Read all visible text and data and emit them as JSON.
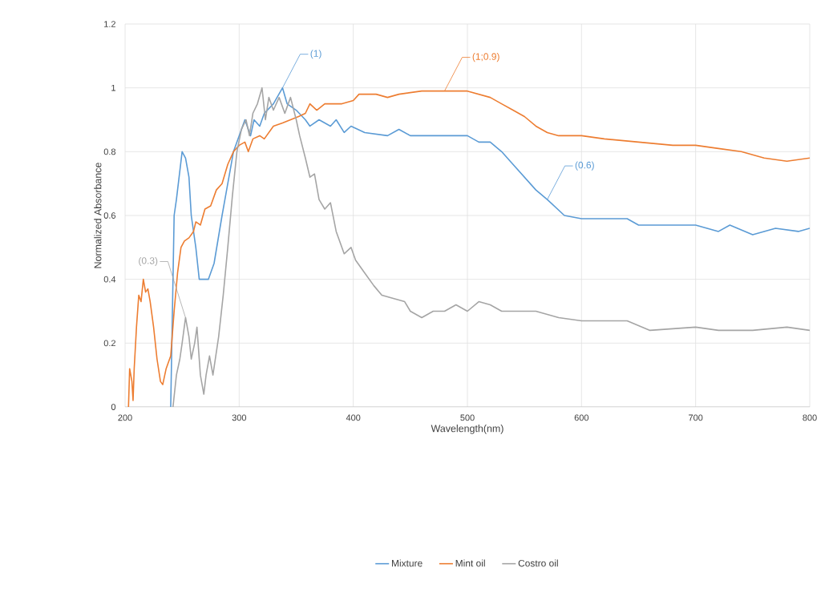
{
  "chart_data": {
    "type": "line",
    "xlabel": "Wavelength(nm)",
    "ylabel": "Normalized Absorbance",
    "xlim": [
      200,
      800
    ],
    "xticks": [
      200,
      300,
      400,
      500,
      600,
      700,
      800
    ],
    "ylim": [
      0,
      1.2
    ],
    "yticks": [
      0,
      0.2,
      0.4,
      0.6,
      0.8,
      1,
      1.2
    ],
    "grid": true,
    "legend": "bottom",
    "marker": "none",
    "line_style": "solid",
    "annotations": [
      {
        "text": "(1)",
        "x": 338,
        "y": 1.0
      },
      {
        "text": "(1;0.9)",
        "x": 480,
        "y": 0.99
      },
      {
        "text": "(0.6)",
        "x": 570,
        "y": 0.65
      },
      {
        "text": "(0.3)",
        "x": 253,
        "y": 0.28
      }
    ],
    "series": [
      {
        "name": "Mixture",
        "color": "#5b9bd5",
        "x": [
          240,
          243,
          245,
          250,
          253,
          256,
          258,
          262,
          265,
          273,
          278,
          285,
          295,
          300,
          305,
          310,
          313,
          318,
          322,
          330,
          338,
          342,
          350,
          358,
          362,
          370,
          380,
          385,
          392,
          398,
          410,
          430,
          440,
          450,
          500,
          510,
          520,
          530,
          540,
          550,
          560,
          570,
          585,
          600,
          640,
          650,
          700,
          720,
          730,
          750,
          770,
          790,
          800
        ],
        "values": [
          0,
          0.6,
          0.65,
          0.8,
          0.78,
          0.72,
          0.6,
          0.5,
          0.4,
          0.4,
          0.45,
          0.6,
          0.8,
          0.85,
          0.9,
          0.85,
          0.9,
          0.88,
          0.92,
          0.95,
          1.0,
          0.95,
          0.93,
          0.9,
          0.88,
          0.9,
          0.88,
          0.9,
          0.86,
          0.88,
          0.86,
          0.85,
          0.87,
          0.85,
          0.85,
          0.83,
          0.83,
          0.8,
          0.76,
          0.72,
          0.68,
          0.65,
          0.6,
          0.59,
          0.59,
          0.57,
          0.57,
          0.55,
          0.57,
          0.54,
          0.56,
          0.55,
          0.56
        ]
      },
      {
        "name": "Mint oil",
        "color": "#ed7d31",
        "x": [
          203,
          204,
          206,
          207,
          208,
          210,
          212,
          214,
          216,
          218,
          220,
          222,
          225,
          228,
          231,
          233,
          236,
          240,
          243,
          246,
          249,
          252,
          256,
          260,
          262,
          266,
          270,
          275,
          280,
          285,
          290,
          295,
          300,
          305,
          308,
          312,
          318,
          322,
          330,
          338,
          345,
          352,
          358,
          362,
          368,
          375,
          390,
          400,
          405,
          420,
          430,
          440,
          460,
          500,
          510,
          520,
          530,
          540,
          550,
          560,
          570,
          580,
          600,
          620,
          650,
          680,
          700,
          720,
          740,
          760,
          780,
          800
        ],
        "values": [
          0,
          0.12,
          0.08,
          0.02,
          0.12,
          0.25,
          0.35,
          0.33,
          0.4,
          0.36,
          0.37,
          0.33,
          0.25,
          0.15,
          0.08,
          0.07,
          0.12,
          0.16,
          0.3,
          0.42,
          0.5,
          0.52,
          0.53,
          0.55,
          0.58,
          0.57,
          0.62,
          0.63,
          0.68,
          0.7,
          0.76,
          0.8,
          0.82,
          0.83,
          0.8,
          0.84,
          0.85,
          0.84,
          0.88,
          0.89,
          0.9,
          0.91,
          0.92,
          0.95,
          0.93,
          0.95,
          0.95,
          0.96,
          0.98,
          0.98,
          0.97,
          0.98,
          0.99,
          0.99,
          0.98,
          0.97,
          0.95,
          0.93,
          0.91,
          0.88,
          0.86,
          0.85,
          0.85,
          0.84,
          0.83,
          0.82,
          0.82,
          0.81,
          0.8,
          0.78,
          0.77,
          0.78
        ]
      },
      {
        "name": "Costro oil",
        "color": "#a5a5a5",
        "x": [
          242,
          245,
          248,
          250,
          253,
          256,
          258,
          261,
          263,
          266,
          269,
          271,
          274,
          277,
          282,
          286,
          290,
          294,
          298,
          302,
          306,
          309,
          312,
          316,
          320,
          323,
          326,
          330,
          335,
          340,
          345,
          350,
          353,
          358,
          362,
          366,
          370,
          375,
          380,
          385,
          392,
          398,
          402,
          410,
          418,
          425,
          435,
          445,
          450,
          460,
          470,
          480,
          490,
          500,
          510,
          520,
          530,
          550,
          560,
          580,
          600,
          640,
          660,
          700,
          720,
          750,
          780,
          800
        ],
        "values": [
          0,
          0.1,
          0.15,
          0.2,
          0.28,
          0.22,
          0.15,
          0.2,
          0.25,
          0.1,
          0.04,
          0.1,
          0.16,
          0.1,
          0.22,
          0.35,
          0.5,
          0.66,
          0.8,
          0.87,
          0.9,
          0.85,
          0.92,
          0.95,
          1.0,
          0.9,
          0.97,
          0.93,
          0.97,
          0.92,
          0.97,
          0.9,
          0.85,
          0.78,
          0.72,
          0.73,
          0.65,
          0.62,
          0.64,
          0.55,
          0.48,
          0.5,
          0.46,
          0.42,
          0.38,
          0.35,
          0.34,
          0.33,
          0.3,
          0.28,
          0.3,
          0.3,
          0.32,
          0.3,
          0.33,
          0.32,
          0.3,
          0.3,
          0.3,
          0.28,
          0.27,
          0.27,
          0.24,
          0.25,
          0.24,
          0.24,
          0.25,
          0.24
        ]
      }
    ]
  }
}
